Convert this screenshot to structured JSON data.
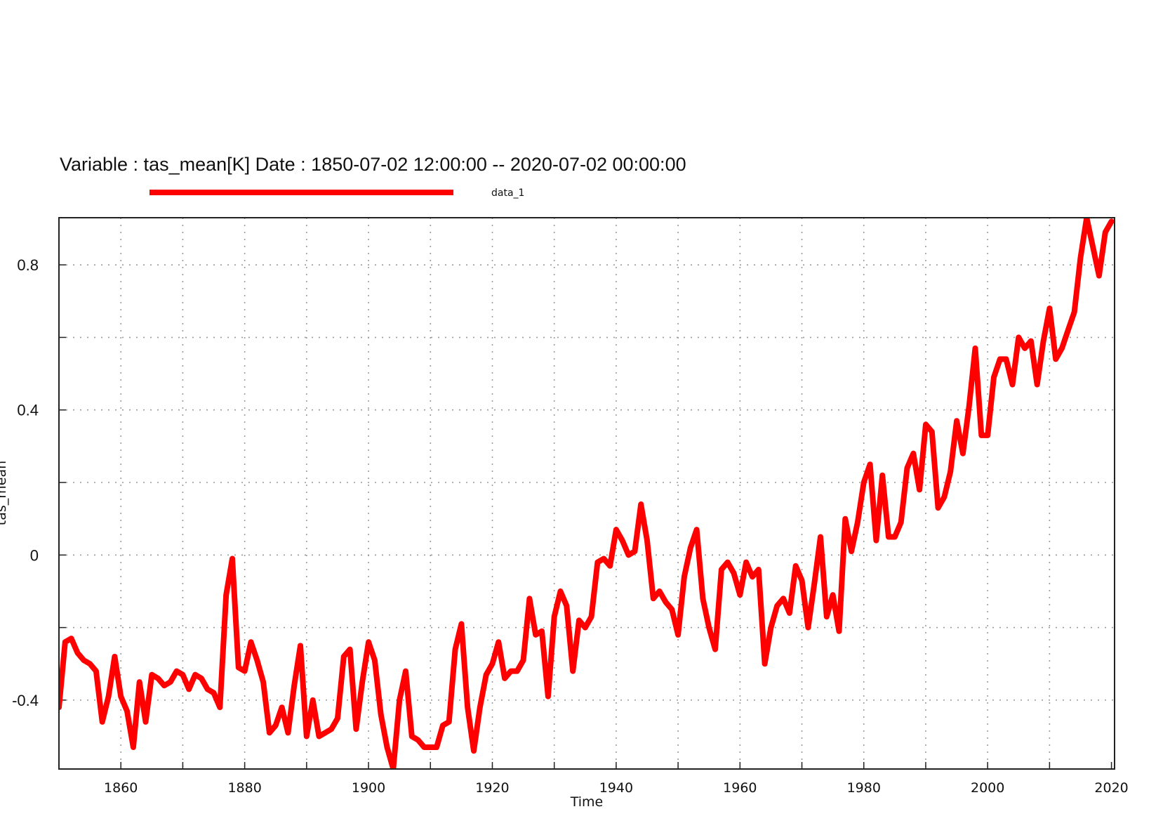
{
  "chart_data": {
    "type": "line",
    "title": "Variable : tas_mean[K]  Date :  1850-07-02 12:00:00 -- 2020-07-02 00:00:00",
    "xlabel": "Time",
    "ylabel": "tas_mean",
    "xlim": [
      1850,
      2020.5
    ],
    "ylim": [
      -0.59,
      0.93
    ],
    "x_ticks": [
      1860,
      1880,
      1900,
      1920,
      1940,
      1960,
      1980,
      2000,
      2020
    ],
    "x_tick_labels": [
      "1860",
      "1880",
      "1900",
      "1920",
      "1940",
      "1960",
      "1980",
      "2000",
      "2020"
    ],
    "y_ticks": [
      -0.4,
      0,
      0.4,
      0.8
    ],
    "y_tick_labels": [
      "-0.4",
      "0",
      "0.4",
      "0.8"
    ],
    "grid": true,
    "legend_position": "top-left",
    "series": [
      {
        "name": "data_1",
        "color": "#ff0000",
        "x": [
          1850,
          1851,
          1852,
          1853,
          1854,
          1855,
          1856,
          1857,
          1858,
          1859,
          1860,
          1861,
          1862,
          1863,
          1864,
          1865,
          1866,
          1867,
          1868,
          1869,
          1870,
          1871,
          1872,
          1873,
          1874,
          1875,
          1876,
          1877,
          1878,
          1879,
          1880,
          1881,
          1882,
          1883,
          1884,
          1885,
          1886,
          1887,
          1888,
          1889,
          1890,
          1891,
          1892,
          1893,
          1894,
          1895,
          1896,
          1897,
          1898,
          1899,
          1900,
          1901,
          1902,
          1903,
          1904,
          1905,
          1906,
          1907,
          1908,
          1909,
          1910,
          1911,
          1912,
          1913,
          1914,
          1915,
          1916,
          1917,
          1918,
          1919,
          1920,
          1921,
          1922,
          1923,
          1924,
          1925,
          1926,
          1927,
          1928,
          1929,
          1930,
          1931,
          1932,
          1933,
          1934,
          1935,
          1936,
          1937,
          1938,
          1939,
          1940,
          1941,
          1942,
          1943,
          1944,
          1945,
          1946,
          1947,
          1948,
          1949,
          1950,
          1951,
          1952,
          1953,
          1954,
          1955,
          1956,
          1957,
          1958,
          1959,
          1960,
          1961,
          1962,
          1963,
          1964,
          1965,
          1966,
          1967,
          1968,
          1969,
          1970,
          1971,
          1972,
          1973,
          1974,
          1975,
          1976,
          1977,
          1978,
          1979,
          1980,
          1981,
          1982,
          1983,
          1984,
          1985,
          1986,
          1987,
          1988,
          1989,
          1990,
          1991,
          1992,
          1993,
          1994,
          1995,
          1996,
          1997,
          1998,
          1999,
          2000,
          2001,
          2002,
          2003,
          2004,
          2005,
          2006,
          2007,
          2008,
          2009,
          2010,
          2011,
          2012,
          2013,
          2014,
          2015,
          2016,
          2017,
          2018,
          2019,
          2020
        ],
        "y": [
          -0.42,
          -0.24,
          -0.23,
          -0.27,
          -0.29,
          -0.3,
          -0.32,
          -0.46,
          -0.39,
          -0.28,
          -0.39,
          -0.43,
          -0.53,
          -0.35,
          -0.46,
          -0.33,
          -0.34,
          -0.36,
          -0.35,
          -0.32,
          -0.33,
          -0.37,
          -0.33,
          -0.34,
          -0.37,
          -0.38,
          -0.42,
          -0.11,
          -0.01,
          -0.31,
          -0.32,
          -0.24,
          -0.29,
          -0.35,
          -0.49,
          -0.47,
          -0.42,
          -0.49,
          -0.36,
          -0.25,
          -0.5,
          -0.4,
          -0.5,
          -0.49,
          -0.48,
          -0.45,
          -0.28,
          -0.26,
          -0.48,
          -0.35,
          -0.24,
          -0.29,
          -0.44,
          -0.53,
          -0.59,
          -0.4,
          -0.32,
          -0.5,
          -0.51,
          -0.53,
          -0.53,
          -0.53,
          -0.47,
          -0.46,
          -0.26,
          -0.19,
          -0.42,
          -0.54,
          -0.42,
          -0.33,
          -0.3,
          -0.24,
          -0.34,
          -0.32,
          -0.32,
          -0.29,
          -0.12,
          -0.22,
          -0.21,
          -0.39,
          -0.17,
          -0.1,
          -0.14,
          -0.32,
          -0.18,
          -0.2,
          -0.17,
          -0.02,
          -0.01,
          -0.03,
          0.07,
          0.04,
          0.0,
          0.01,
          0.14,
          0.04,
          -0.12,
          -0.1,
          -0.13,
          -0.15,
          -0.22,
          -0.06,
          0.02,
          0.07,
          -0.12,
          -0.2,
          -0.26,
          -0.04,
          -0.02,
          -0.05,
          -0.11,
          -0.02,
          -0.06,
          -0.04,
          -0.3,
          -0.2,
          -0.14,
          -0.12,
          -0.16,
          -0.03,
          -0.07,
          -0.2,
          -0.08,
          0.05,
          -0.17,
          -0.11,
          -0.21,
          0.1,
          0.01,
          0.09,
          0.2,
          0.25,
          0.04,
          0.22,
          0.05,
          0.05,
          0.09,
          0.24,
          0.28,
          0.18,
          0.36,
          0.34,
          0.13,
          0.16,
          0.23,
          0.37,
          0.28,
          0.41,
          0.57,
          0.33,
          0.33,
          0.49,
          0.54,
          0.54,
          0.47,
          0.6,
          0.57,
          0.59,
          0.47,
          0.59,
          0.68,
          0.54,
          0.57,
          0.62,
          0.67,
          0.82,
          0.93,
          0.85,
          0.77,
          0.89,
          0.92
        ]
      }
    ]
  }
}
